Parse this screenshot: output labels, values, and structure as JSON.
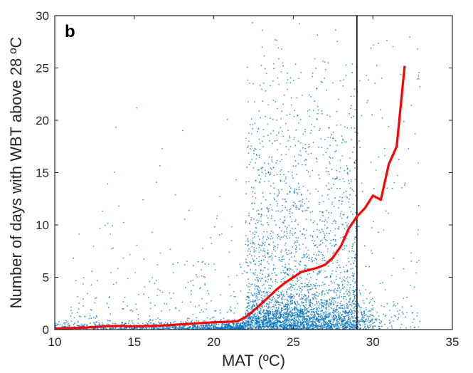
{
  "chart_data": {
    "type": "scatter",
    "panel_label": "b",
    "xlabel": "MAT (ºC)",
    "ylabel": "Number of days with WBT above 28 ºC",
    "xlim": [
      10,
      35
    ],
    "ylim": [
      0,
      30
    ],
    "xticks": [
      10,
      15,
      20,
      25,
      30,
      35
    ],
    "yticks": [
      0,
      5,
      10,
      15,
      20,
      25,
      30
    ],
    "grid": false,
    "reference_line": {
      "x": 29,
      "color": "#000000"
    },
    "series": [
      {
        "kind": "scatter",
        "color": "#0072BD",
        "points_description": "dense scatter of grid cells, most near 0 days; spread increases for MAT 23-29 ºC"
      },
      {
        "kind": "line",
        "color": "#FF0000",
        "x": [
          10,
          11,
          12,
          13,
          14,
          15,
          16,
          17,
          18,
          19,
          20,
          21,
          21.5,
          22,
          22.5,
          23,
          23.5,
          24,
          24.5,
          25,
          25.5,
          26,
          26.5,
          27,
          27.5,
          28,
          28.5,
          29,
          29.5,
          30,
          30.5,
          31,
          31.5,
          32
        ],
        "y": [
          0.1,
          0.15,
          0.2,
          0.3,
          0.35,
          0.3,
          0.35,
          0.4,
          0.5,
          0.6,
          0.7,
          0.75,
          0.8,
          1.2,
          1.8,
          2.5,
          3.2,
          3.9,
          4.5,
          5.0,
          5.5,
          5.7,
          5.9,
          6.2,
          6.9,
          8.0,
          9.7,
          10.8,
          11.6,
          12.8,
          12.4,
          15.8,
          17.5,
          25.2
        ]
      }
    ]
  }
}
